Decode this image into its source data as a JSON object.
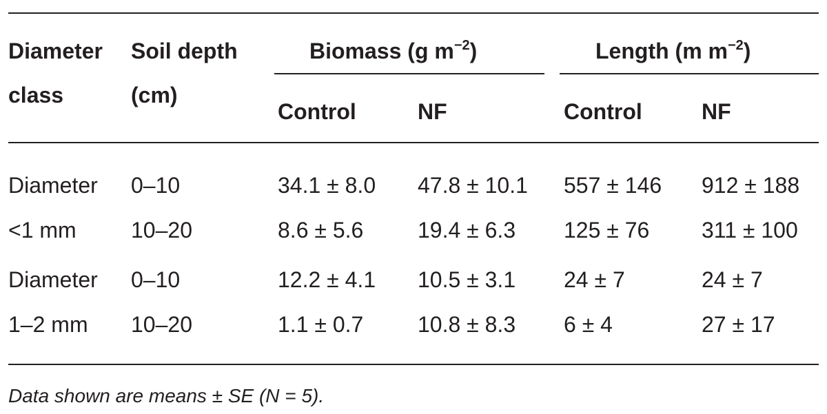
{
  "table": {
    "headers": {
      "diameter_class_line1": "Diameter",
      "diameter_class_line2": "class",
      "soil_depth_line1": "Soil depth",
      "soil_depth_line2": "(cm)",
      "biomass_group": "Biomass (g m",
      "biomass_exp": "−2",
      "biomass_close": ")",
      "length_group": "Length (m m",
      "length_exp": "−2",
      "length_close": ")",
      "biomass_control": "Control",
      "biomass_nf": "NF",
      "length_control": "Control",
      "length_nf": "NF"
    },
    "rows": [
      {
        "class": "Diameter",
        "depth": "0–10",
        "biomass_control": "34.1 ± 8.0",
        "biomass_nf": "47.8 ± 10.1",
        "length_control": "557 ± 146",
        "length_nf": "912 ± 188"
      },
      {
        "class": "<1 mm",
        "depth": "10–20",
        "biomass_control": "8.6 ± 5.6",
        "biomass_nf": "19.4 ± 6.3",
        "length_control": "125 ± 76",
        "length_nf": "311 ± 100"
      },
      {
        "class": "Diameter",
        "depth": "0–10",
        "biomass_control": "12.2 ± 4.1",
        "biomass_nf": "10.5 ± 3.1",
        "length_control": "24 ± 7",
        "length_nf": "24 ± 7"
      },
      {
        "class": "1–2 mm",
        "depth": "10–20",
        "biomass_control": "1.1 ± 0.7",
        "biomass_nf": "10.8 ± 8.3",
        "length_control": "6 ± 4",
        "length_nf": "27 ± 17"
      }
    ],
    "footnote": "Data shown are means ± SE (N = 5)."
  }
}
